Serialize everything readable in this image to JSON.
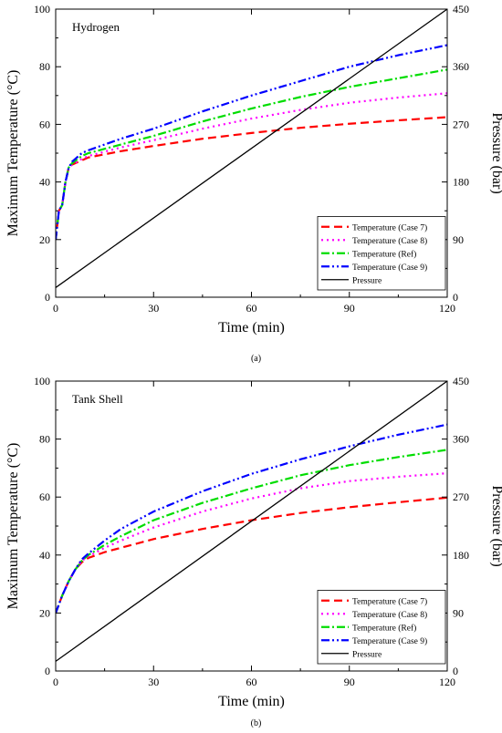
{
  "chart_data": [
    {
      "type": "line",
      "title": "Hydrogen",
      "caption": "(a)",
      "xlabel": "Time (min)",
      "ylabel": "Maximum Temperature (°C)",
      "y2label": "Pressure (bar)",
      "xlim": [
        0,
        120
      ],
      "ylim": [
        0,
        100
      ],
      "y2lim": [
        0,
        450
      ],
      "xticks": [
        0,
        30,
        60,
        90,
        120
      ],
      "yticks": [
        0,
        20,
        40,
        60,
        80,
        100
      ],
      "y2ticks": [
        0,
        90,
        180,
        270,
        360,
        450
      ],
      "legend_position": "bottom-right",
      "series": [
        {
          "name": "Temperature (Case 7)",
          "color": "#ff0000",
          "dash": "9,5",
          "axis": "left",
          "x": [
            0,
            1,
            2,
            3,
            4,
            5,
            8,
            10,
            20,
            30,
            45,
            60,
            75,
            90,
            105,
            120
          ],
          "y": [
            20,
            30,
            32,
            40,
            45,
            46,
            47.5,
            48.5,
            50.7,
            52.5,
            55,
            57,
            58.8,
            60.2,
            61.4,
            62.5
          ]
        },
        {
          "name": "Temperature (Case 8)",
          "color": "#ff00ff",
          "dash": "2,4",
          "axis": "left",
          "x": [
            0,
            1,
            2,
            3,
            4,
            5,
            8,
            10,
            20,
            30,
            45,
            60,
            75,
            90,
            105,
            120
          ],
          "y": [
            20,
            30,
            32,
            40,
            45,
            46,
            48,
            49,
            52,
            54.5,
            58.5,
            62,
            65,
            67.5,
            69.3,
            70.8
          ]
        },
        {
          "name": "Temperature (Ref)",
          "color": "#00dd00",
          "dash": "9,3,2,3",
          "axis": "left",
          "x": [
            0,
            1,
            2,
            3,
            4,
            5,
            8,
            10,
            20,
            30,
            45,
            60,
            75,
            90,
            105,
            120
          ],
          "y": [
            20,
            30,
            32,
            40,
            45,
            46.5,
            49,
            50,
            53,
            56,
            61,
            65.5,
            69.5,
            73,
            76,
            79
          ]
        },
        {
          "name": "Temperature (Case 9)",
          "color": "#0000ff",
          "dash": "9,3,2,3,2,3",
          "axis": "left",
          "x": [
            0,
            1,
            2,
            3,
            4,
            5,
            8,
            10,
            20,
            30,
            45,
            60,
            75,
            90,
            105,
            120
          ],
          "y": [
            20,
            30,
            32,
            40,
            45,
            47,
            50,
            51,
            55,
            58.5,
            64.5,
            70,
            75,
            80,
            84,
            87.5
          ]
        },
        {
          "name": "Pressure",
          "color": "#000000",
          "dash": "",
          "axis": "right",
          "x": [
            0,
            120
          ],
          "y": [
            15,
            450
          ]
        }
      ]
    },
    {
      "type": "line",
      "title": "Tank Shell",
      "caption": "(b)",
      "xlabel": "Time (min)",
      "ylabel": "Maximum Temperature (°C)",
      "y2label": "Pressure (bar)",
      "xlim": [
        0,
        120
      ],
      "ylim": [
        0,
        100
      ],
      "y2lim": [
        0,
        450
      ],
      "xticks": [
        0,
        30,
        60,
        90,
        120
      ],
      "yticks": [
        0,
        20,
        40,
        60,
        80,
        100
      ],
      "y2ticks": [
        0,
        90,
        180,
        270,
        360,
        450
      ],
      "legend_position": "bottom-right",
      "series": [
        {
          "name": "Temperature (Case 7)",
          "color": "#ff0000",
          "dash": "9,5",
          "axis": "left",
          "x": [
            0,
            1,
            2,
            4,
            6,
            8,
            10,
            15,
            20,
            30,
            45,
            60,
            75,
            90,
            105,
            120
          ],
          "y": [
            20,
            23,
            26,
            31,
            35,
            37.5,
            39,
            41,
            42.5,
            45.5,
            49,
            52,
            54.5,
            56.5,
            58.2,
            59.8
          ]
        },
        {
          "name": "Temperature (Case 8)",
          "color": "#ff00ff",
          "dash": "2,4",
          "axis": "left",
          "x": [
            0,
            1,
            2,
            4,
            6,
            8,
            10,
            15,
            20,
            30,
            45,
            60,
            75,
            90,
            105,
            120
          ],
          "y": [
            20,
            23,
            26,
            31,
            35,
            38,
            39.5,
            42.5,
            45,
            49.5,
            55,
            59.5,
            63,
            65.5,
            67,
            68.2
          ]
        },
        {
          "name": "Temperature (Ref)",
          "color": "#00dd00",
          "dash": "9,3,2,3",
          "axis": "left",
          "x": [
            0,
            1,
            2,
            4,
            6,
            8,
            10,
            15,
            20,
            30,
            45,
            60,
            75,
            90,
            105,
            120
          ],
          "y": [
            20,
            23,
            26,
            31,
            35,
            38,
            40,
            43.5,
            46.5,
            52,
            58,
            63,
            67.5,
            71,
            73.8,
            76.3
          ]
        },
        {
          "name": "Temperature (Case 9)",
          "color": "#0000ff",
          "dash": "9,3,2,3,2,3",
          "axis": "left",
          "x": [
            0,
            1,
            2,
            4,
            6,
            8,
            10,
            15,
            20,
            30,
            45,
            60,
            75,
            90,
            105,
            120
          ],
          "y": [
            20,
            23,
            26,
            31,
            35,
            38.5,
            40.5,
            45,
            49,
            55,
            62,
            68,
            73,
            77.5,
            81.5,
            85
          ]
        },
        {
          "name": "Pressure",
          "color": "#000000",
          "dash": "",
          "axis": "right",
          "x": [
            0,
            120
          ],
          "y": [
            15,
            450
          ]
        }
      ]
    }
  ]
}
